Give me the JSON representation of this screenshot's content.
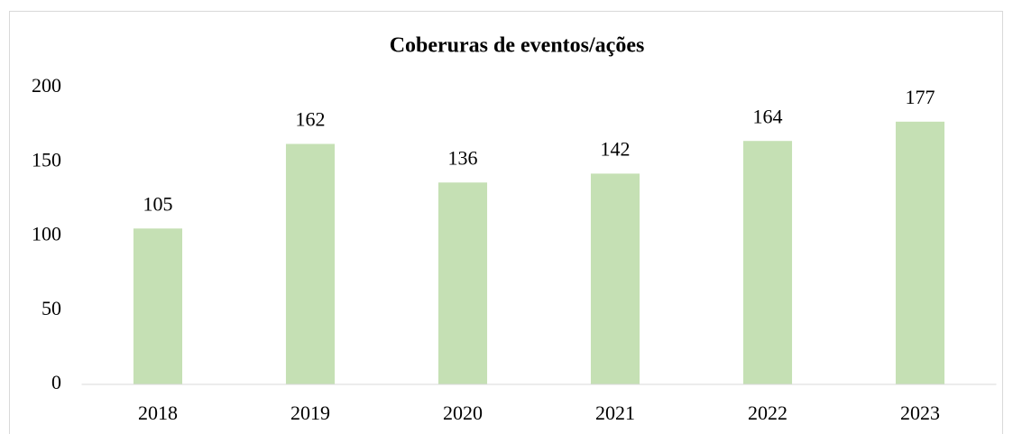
{
  "chart_data": {
    "type": "bar",
    "title": "Coberuras de eventos/ações",
    "categories": [
      "2018",
      "2019",
      "2020",
      "2021",
      "2022",
      "2023"
    ],
    "values": [
      105,
      162,
      136,
      142,
      164,
      177
    ],
    "color": "#c5e0b4",
    "ylim": [
      0,
      200
    ],
    "yticks": [
      0,
      50,
      100,
      150,
      200
    ],
    "grid": false
  }
}
